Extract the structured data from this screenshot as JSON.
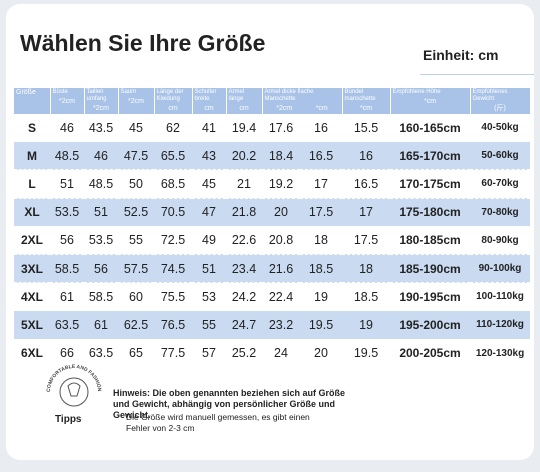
{
  "header": {
    "title": "Wählen Sie Ihre Größe",
    "unit": "Einheit: cm"
  },
  "table": {
    "columns": [
      {
        "label": "Größe"
      },
      {
        "label": "Büste",
        "units": [
          "*2cm"
        ]
      },
      {
        "label": "Taillen umfang",
        "units": [
          "*2cm"
        ]
      },
      {
        "label": "Saum",
        "units": [
          "*2cm"
        ]
      },
      {
        "label": "Länge der Kleidung",
        "units": [
          "cm"
        ]
      },
      {
        "label": "Schulter breite",
        "units": [
          "cm"
        ]
      },
      {
        "label": "Ärmel länge",
        "units": [
          "cm"
        ]
      },
      {
        "label": "Ärmel dicke flache Manschette",
        "units": [
          "*2cm",
          "*cm"
        ]
      },
      {
        "label": "Bündel manschette",
        "units": [
          "*cm"
        ]
      },
      {
        "label": "Empfohlene Höhe",
        "units": [
          "*cm"
        ]
      },
      {
        "label": "Empfohlenes Gewicht",
        "units": [
          "(斤)"
        ]
      }
    ],
    "rows": [
      [
        "S",
        46,
        43.5,
        45,
        62,
        41,
        19.4,
        17.6,
        16,
        15.5,
        "160-165cm",
        "40-50kg"
      ],
      [
        "M",
        48.5,
        46,
        47.5,
        65.5,
        43,
        20.2,
        18.4,
        16.5,
        16,
        "165-170cm",
        "50-60kg"
      ],
      [
        "L",
        51,
        48.5,
        50,
        68.5,
        45,
        21,
        19.2,
        17,
        16.5,
        "170-175cm",
        "60-70kg"
      ],
      [
        "XL",
        53.5,
        51,
        52.5,
        70.5,
        47,
        21.8,
        20,
        17.5,
        17,
        "175-180cm",
        "70-80kg"
      ],
      [
        "2XL",
        56,
        53.5,
        55,
        72.5,
        49,
        22.6,
        20.8,
        18,
        17.5,
        "180-185cm",
        "80-90kg"
      ],
      [
        "3XL",
        58.5,
        56,
        57.5,
        74.5,
        51,
        23.4,
        21.6,
        18.5,
        18,
        "185-190cm",
        "90-100kg"
      ],
      [
        "4XL",
        61,
        58.5,
        60,
        75.5,
        53,
        24.2,
        22.4,
        19,
        18.5,
        "190-195cm",
        "100-110kg"
      ],
      [
        "5XL",
        63.5,
        61,
        62.5,
        76.5,
        55,
        24.7,
        23.2,
        19.5,
        19,
        "195-200cm",
        "110-120kg"
      ],
      [
        "6XL",
        66,
        63.5,
        65,
        77.5,
        57,
        25.2,
        24,
        20,
        19.5,
        "200-205cm",
        "120-130kg"
      ]
    ]
  },
  "footer": {
    "logo_text": "COMFORTABLE AND FASHIONABLE",
    "tips": "Tipps",
    "note": "Hinweis: Die oben genannten beziehen sich auf Größe und Gewicht, abhängig von persönlicher Größe und Gewicht.",
    "note2": "Die Größe wird manuell gemessen, es gibt einen Fehler von 2-3 cm"
  }
}
